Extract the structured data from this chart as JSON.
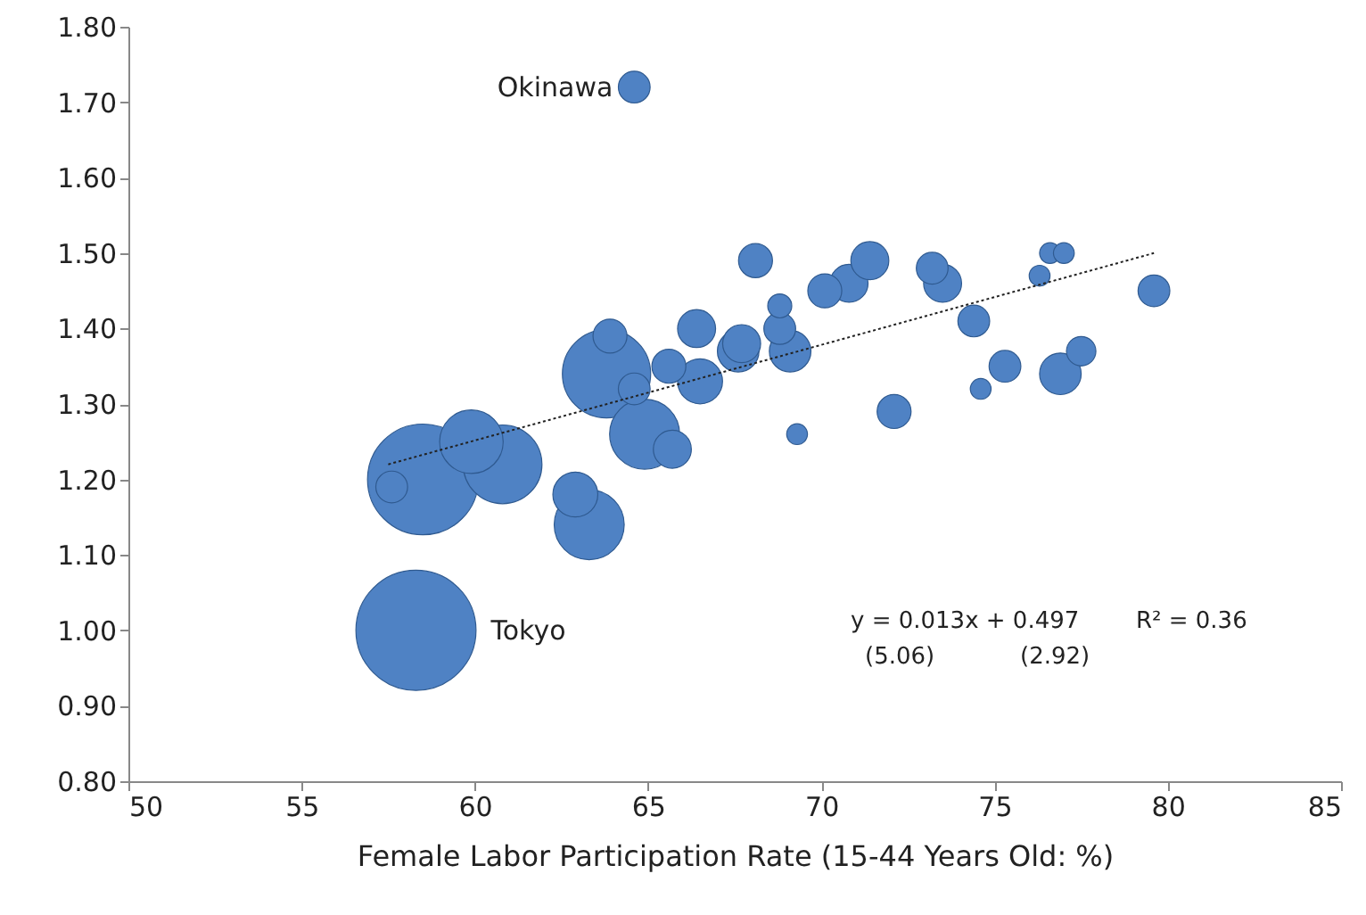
{
  "chart_data": {
    "type": "bubble",
    "xlabel": "Female Labor Participation Rate (15-44 Years Old: %)",
    "xlim": [
      50,
      85
    ],
    "xticks": [
      50,
      55,
      60,
      65,
      70,
      75,
      80,
      85
    ],
    "ylim": [
      0.8,
      1.8
    ],
    "yticks": [
      {
        "value": 0.8,
        "label": "0.80"
      },
      {
        "value": 0.9,
        "label": "0.90"
      },
      {
        "value": 1.0,
        "label": "1.00"
      },
      {
        "value": 1.1,
        "label": "1.10"
      },
      {
        "value": 1.2,
        "label": "1.20"
      },
      {
        "value": 1.3,
        "label": "1.30"
      },
      {
        "value": 1.4,
        "label": "1.40"
      },
      {
        "value": 1.5,
        "label": "1.50"
      },
      {
        "value": 1.6,
        "label": "1.60"
      },
      {
        "value": 1.7,
        "label": "1.70"
      },
      {
        "value": 1.8,
        "label": "1.80"
      }
    ],
    "grid": false,
    "series": [
      {
        "color": "#4f82c4",
        "x": [
          64.6,
          58.3,
          57.6,
          58.5,
          59.9,
          60.8,
          62.9,
          63.3,
          63.8,
          63.9,
          64.6,
          64.9,
          65.7,
          65.6,
          66.5,
          66.4,
          68.1,
          67.6,
          67.7,
          68.8,
          68.8,
          69.1,
          69.3,
          70.1,
          70.8,
          71.4,
          72.1,
          73.2,
          73.5,
          74.4,
          74.6,
          75.3,
          76.3,
          76.6,
          77.0,
          76.9,
          77.5,
          79.6
        ],
        "values": [
          1.72,
          1.0,
          1.19,
          1.2,
          1.25,
          1.22,
          1.18,
          1.14,
          1.34,
          1.39,
          1.32,
          1.26,
          1.24,
          1.35,
          1.33,
          1.4,
          1.49,
          1.37,
          1.38,
          1.43,
          1.4,
          1.37,
          1.26,
          1.45,
          1.46,
          1.49,
          1.29,
          1.48,
          1.46,
          1.41,
          1.32,
          1.35,
          1.47,
          1.5,
          1.5,
          1.34,
          1.37,
          1.45
        ],
        "sizes": [
          0.07,
          1.0,
          0.07,
          0.85,
          0.28,
          0.43,
          0.14,
          0.34,
          0.54,
          0.08,
          0.07,
          0.34,
          0.1,
          0.08,
          0.14,
          0.1,
          0.08,
          0.12,
          0.1,
          0.04,
          0.07,
          0.12,
          0.03,
          0.08,
          0.1,
          0.1,
          0.08,
          0.07,
          0.1,
          0.07,
          0.03,
          0.07,
          0.03,
          0.03,
          0.03,
          0.12,
          0.06,
          0.07
        ]
      },
      {
        "type": "line",
        "color": "#222222",
        "line_style": "dotted",
        "x": [
          57.5,
          79.6
        ],
        "values": [
          1.22,
          1.5
        ]
      }
    ],
    "annotations": [
      {
        "text": "Okinawa",
        "x": 64.6,
        "y": 1.72
      },
      {
        "text": "Tokyo",
        "x": 58.3,
        "y": 1.0
      },
      "y = 0.013x + 0.497",
      "R² = 0.36",
      "(5.06)",
      "(2.92)"
    ]
  }
}
